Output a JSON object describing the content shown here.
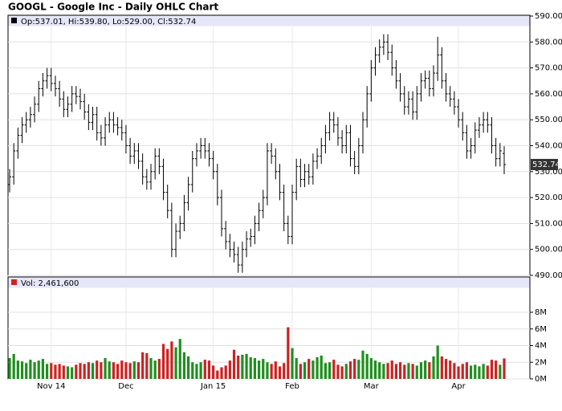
{
  "chart_data": {
    "type": "ohlc",
    "title": "GOOGL - Google Inc - Daily OHLC Chart",
    "ohlc_label": "Op:537.01, Hi:539.80, Lo:529.00, Cl:532.74",
    "volume_label": "Vol: 2,461,600",
    "categories": [
      null,
      null,
      null,
      null,
      null,
      null,
      null,
      null,
      null,
      null,
      "Nov 14",
      null,
      null,
      null,
      null,
      null,
      null,
      null,
      null,
      null,
      null,
      null,
      null,
      null,
      null,
      null,
      null,
      null,
      "Dec",
      null,
      null,
      null,
      null,
      null,
      null,
      null,
      null,
      null,
      null,
      null,
      null,
      null,
      null,
      null,
      null,
      null,
      null,
      null,
      null,
      "Jan 15",
      null,
      null,
      null,
      null,
      null,
      null,
      null,
      null,
      null,
      null,
      null,
      null,
      null,
      null,
      null,
      null,
      null,
      null,
      "Feb",
      null,
      null,
      null,
      null,
      null,
      null,
      null,
      null,
      null,
      null,
      null,
      null,
      null,
      null,
      null,
      null,
      null,
      null,
      "Mar",
      null,
      null,
      null,
      null,
      null,
      null,
      null,
      null,
      null,
      null,
      null,
      null,
      null,
      null,
      null,
      null,
      null,
      null,
      null,
      null,
      "Apr",
      null,
      null,
      null,
      null,
      null,
      null,
      null,
      null,
      null,
      null,
      null
    ],
    "open": [
      525,
      528,
      538,
      544,
      548,
      550,
      552,
      556,
      562,
      565,
      567,
      564,
      562,
      558,
      554,
      556,
      560,
      559,
      557,
      553,
      549,
      552,
      545,
      543,
      548,
      550,
      548,
      547,
      545,
      540,
      536,
      538,
      534,
      528,
      526,
      530,
      536,
      532,
      522,
      515,
      500,
      507,
      510,
      518,
      525,
      535,
      538,
      540,
      538,
      535,
      530,
      520,
      508,
      503,
      500,
      498,
      494,
      500,
      504,
      505,
      510,
      515,
      520,
      538,
      536,
      530,
      522,
      510,
      505,
      522,
      532,
      527,
      530,
      528,
      534,
      536,
      540,
      545,
      550,
      548,
      543,
      540,
      545,
      535,
      532,
      540,
      550,
      560,
      570,
      575,
      578,
      580,
      576,
      570,
      565,
      560,
      555,
      558,
      553,
      560,
      565,
      566,
      562,
      568,
      575,
      565,
      560,
      558,
      555,
      550,
      545,
      538,
      540,
      546,
      548,
      550,
      548,
      540,
      535,
      537.01
    ],
    "high": [
      531,
      541,
      547,
      551,
      553,
      555,
      559,
      565,
      568,
      570,
      570,
      567,
      565,
      561,
      559,
      563,
      563,
      562,
      560,
      556,
      555,
      555,
      548,
      551,
      553,
      553,
      551,
      550,
      548,
      543,
      541,
      541,
      537,
      531,
      533,
      539,
      539,
      535,
      525,
      518,
      510,
      513,
      521,
      528,
      538,
      541,
      543,
      543,
      541,
      538,
      533,
      523,
      511,
      506,
      503,
      501,
      503,
      507,
      508,
      513,
      518,
      523,
      541,
      541,
      539,
      533,
      525,
      513,
      525,
      535,
      535,
      533,
      533,
      537,
      539,
      543,
      548,
      553,
      553,
      551,
      546,
      548,
      548,
      538,
      543,
      553,
      563,
      573,
      578,
      581,
      583,
      583,
      579,
      573,
      568,
      563,
      561,
      561,
      563,
      568,
      569,
      569,
      571,
      582,
      578,
      568,
      563,
      561,
      558,
      553,
      548,
      543,
      549,
      551,
      553,
      553,
      551,
      543,
      541,
      539.8
    ],
    "low": [
      522,
      525,
      535,
      541,
      545,
      547,
      549,
      553,
      559,
      562,
      561,
      559,
      555,
      551,
      551,
      553,
      556,
      554,
      550,
      546,
      546,
      542,
      540,
      540,
      545,
      545,
      544,
      542,
      537,
      533,
      533,
      531,
      525,
      523,
      523,
      527,
      529,
      519,
      512,
      497,
      497,
      504,
      507,
      515,
      522,
      532,
      535,
      535,
      532,
      527,
      517,
      505,
      500,
      497,
      495,
      491,
      491,
      497,
      501,
      502,
      507,
      512,
      517,
      533,
      527,
      519,
      507,
      502,
      502,
      519,
      524,
      524,
      525,
      525,
      531,
      533,
      537,
      542,
      545,
      540,
      537,
      537,
      532,
      529,
      529,
      537,
      547,
      557,
      567,
      572,
      575,
      573,
      567,
      562,
      557,
      552,
      552,
      550,
      550,
      557,
      562,
      559,
      559,
      565,
      562,
      557,
      555,
      552,
      547,
      542,
      535,
      535,
      537,
      543,
      545,
      545,
      537,
      532,
      532,
      529.0
    ],
    "close": [
      528,
      538,
      544,
      548,
      550,
      552,
      556,
      562,
      565,
      567,
      564,
      562,
      558,
      554,
      556,
      560,
      559,
      557,
      553,
      549,
      552,
      545,
      543,
      548,
      550,
      548,
      547,
      545,
      540,
      536,
      538,
      534,
      528,
      526,
      530,
      536,
      532,
      522,
      515,
      500,
      507,
      510,
      518,
      525,
      535,
      538,
      540,
      538,
      535,
      530,
      520,
      508,
      503,
      500,
      498,
      494,
      500,
      504,
      505,
      510,
      515,
      520,
      538,
      536,
      530,
      522,
      510,
      505,
      522,
      532,
      527,
      530,
      528,
      534,
      536,
      540,
      545,
      550,
      548,
      543,
      540,
      545,
      535,
      532,
      540,
      550,
      560,
      570,
      575,
      578,
      580,
      576,
      570,
      565,
      560,
      555,
      558,
      553,
      560,
      565,
      566,
      562,
      568,
      575,
      565,
      560,
      558,
      555,
      550,
      545,
      538,
      540,
      546,
      548,
      550,
      548,
      540,
      535,
      538,
      532.74
    ],
    "volume": [
      2.5,
      3.0,
      2.2,
      2.1,
      1.9,
      2.3,
      2.0,
      2.2,
      2.4,
      1.8,
      1.9,
      1.7,
      1.8,
      1.6,
      1.5,
      1.4,
      1.7,
      1.9,
      1.8,
      2.0,
      1.9,
      2.2,
      2.0,
      2.5,
      2.1,
      2.0,
      1.8,
      2.2,
      2.0,
      1.9,
      2.1,
      2.0,
      3.2,
      3.1,
      2.5,
      2.2,
      2.4,
      4.2,
      3.6,
      4.5,
      3.8,
      4.8,
      3.2,
      2.7,
      2.0,
      1.8,
      2.0,
      2.3,
      2.2,
      1.6,
      1.0,
      1.4,
      1.6,
      2.2,
      3.5,
      2.8,
      2.9,
      3.0,
      2.6,
      2.5,
      2.2,
      2.4,
      2.0,
      1.8,
      2.1,
      1.5,
      1.9,
      6.2,
      3.7,
      2.5,
      1.8,
      2.0,
      2.4,
      2.2,
      2.6,
      2.8,
      1.9,
      2.0,
      2.3,
      1.7,
      1.5,
      1.8,
      2.1,
      2.4,
      2.3,
      3.4,
      3.0,
      2.5,
      2.2,
      2.0,
      1.8,
      1.9,
      2.2,
      1.8,
      2.0,
      1.7,
      1.9,
      1.8,
      1.6,
      2.0,
      2.2,
      2.0,
      2.7,
      4.0,
      2.7,
      2.4,
      2.2,
      1.9,
      1.5,
      1.8,
      2.0,
      1.6,
      1.7,
      1.5,
      1.8,
      1.6,
      2.3,
      2.2,
      1.7,
      2.4616
    ],
    "bar_color": "#000000",
    "up_color": "#1f8f1f",
    "down_color": "#cc2222",
    "ylim": [
      490,
      590
    ],
    "yticks": [
      {
        "value": 490,
        "label": "490.00"
      },
      {
        "value": 500,
        "label": "500.00"
      },
      {
        "value": 510,
        "label": "510.00"
      },
      {
        "value": 520,
        "label": "520.00"
      },
      {
        "value": 530,
        "label": "530.00"
      },
      {
        "value": 540,
        "label": "540.00"
      },
      {
        "value": 550,
        "label": "550.00"
      },
      {
        "value": 560,
        "label": "560.00"
      },
      {
        "value": 570,
        "label": "570.00"
      },
      {
        "value": 580,
        "label": "580.00"
      },
      {
        "value": 590,
        "label": "590.00"
      }
    ],
    "y2lim": [
      0,
      8
    ],
    "y2ticks": [
      {
        "value": 0,
        "label": "0M"
      },
      {
        "value": 2,
        "label": "2M"
      },
      {
        "value": 4,
        "label": "4M"
      },
      {
        "value": 6,
        "label": "6M"
      },
      {
        "value": 8,
        "label": "8M"
      }
    ],
    "grid": true
  }
}
